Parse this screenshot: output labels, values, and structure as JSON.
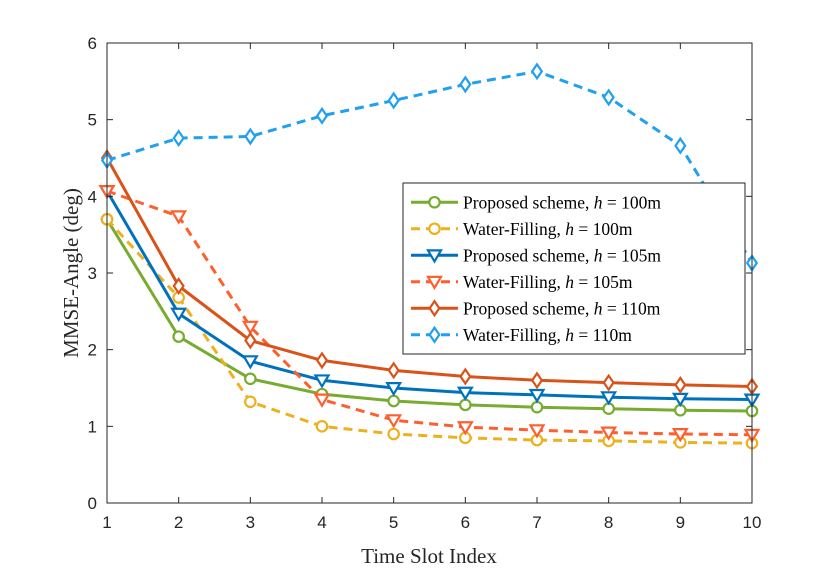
{
  "chart_data": {
    "type": "line",
    "title": "",
    "xlabel": "Time Slot Index",
    "ylabel": "MMSE-Angle (deg)",
    "x": [
      1,
      2,
      3,
      4,
      5,
      6,
      7,
      8,
      9,
      10
    ],
    "xlim": [
      1,
      10
    ],
    "ylim": [
      0,
      6
    ],
    "xticks": [
      "1",
      "2",
      "3",
      "4",
      "5",
      "6",
      "7",
      "8",
      "9",
      "10"
    ],
    "yticks": [
      "0",
      "1",
      "2",
      "3",
      "4",
      "5",
      "6"
    ],
    "grid": false,
    "legend_position": "right",
    "series": [
      {
        "name": "Proposed scheme, h = 100m",
        "legend_prefix": "Proposed scheme, ",
        "legend_var": "h",
        "legend_suffix": " = 100m",
        "color": "#77AC30",
        "dashed": false,
        "marker": "circle",
        "values": [
          3.7,
          2.17,
          1.62,
          1.42,
          1.33,
          1.28,
          1.25,
          1.23,
          1.21,
          1.2
        ]
      },
      {
        "name": "Water-Filling, h = 100m",
        "legend_prefix": "Water-Filling, ",
        "legend_var": "h",
        "legend_suffix": " = 100m",
        "color": "#EDB120",
        "dashed": true,
        "marker": "circle",
        "values": [
          3.7,
          2.68,
          1.32,
          1.0,
          0.9,
          0.85,
          0.82,
          0.81,
          0.79,
          0.78
        ]
      },
      {
        "name": "Proposed scheme, h = 105m",
        "legend_prefix": "Proposed scheme, ",
        "legend_var": "h",
        "legend_suffix": " = 105m",
        "color": "#0072BD",
        "dashed": false,
        "marker": "triangle-down",
        "values": [
          4.07,
          2.47,
          1.85,
          1.6,
          1.5,
          1.44,
          1.41,
          1.38,
          1.36,
          1.35
        ]
      },
      {
        "name": "Water-Filling, h = 105m",
        "legend_prefix": "Water-Filling, ",
        "legend_var": "h",
        "legend_suffix": " = 105m",
        "color": "#FF5F2E",
        "dashed": true,
        "marker": "triangle-down",
        "values": [
          4.07,
          3.74,
          2.3,
          1.35,
          1.08,
          0.99,
          0.95,
          0.92,
          0.9,
          0.89
        ]
      },
      {
        "name": "Proposed scheme, h = 110m",
        "legend_prefix": "Proposed scheme, ",
        "legend_var": "h",
        "legend_suffix": " = 110m",
        "color": "#D95319",
        "dashed": false,
        "marker": "diamond",
        "values": [
          4.5,
          2.83,
          2.12,
          1.86,
          1.73,
          1.65,
          1.6,
          1.57,
          1.54,
          1.52
        ]
      },
      {
        "name": "Water-Filling, h = 110m",
        "legend_prefix": "Water-Filling, ",
        "legend_var": "h",
        "legend_suffix": " = 110m",
        "color": "#1FA0F0",
        "dashed": true,
        "marker": "diamond",
        "values": [
          4.47,
          4.76,
          4.78,
          5.05,
          5.25,
          5.46,
          5.63,
          5.29,
          4.66,
          3.13
        ]
      }
    ]
  }
}
